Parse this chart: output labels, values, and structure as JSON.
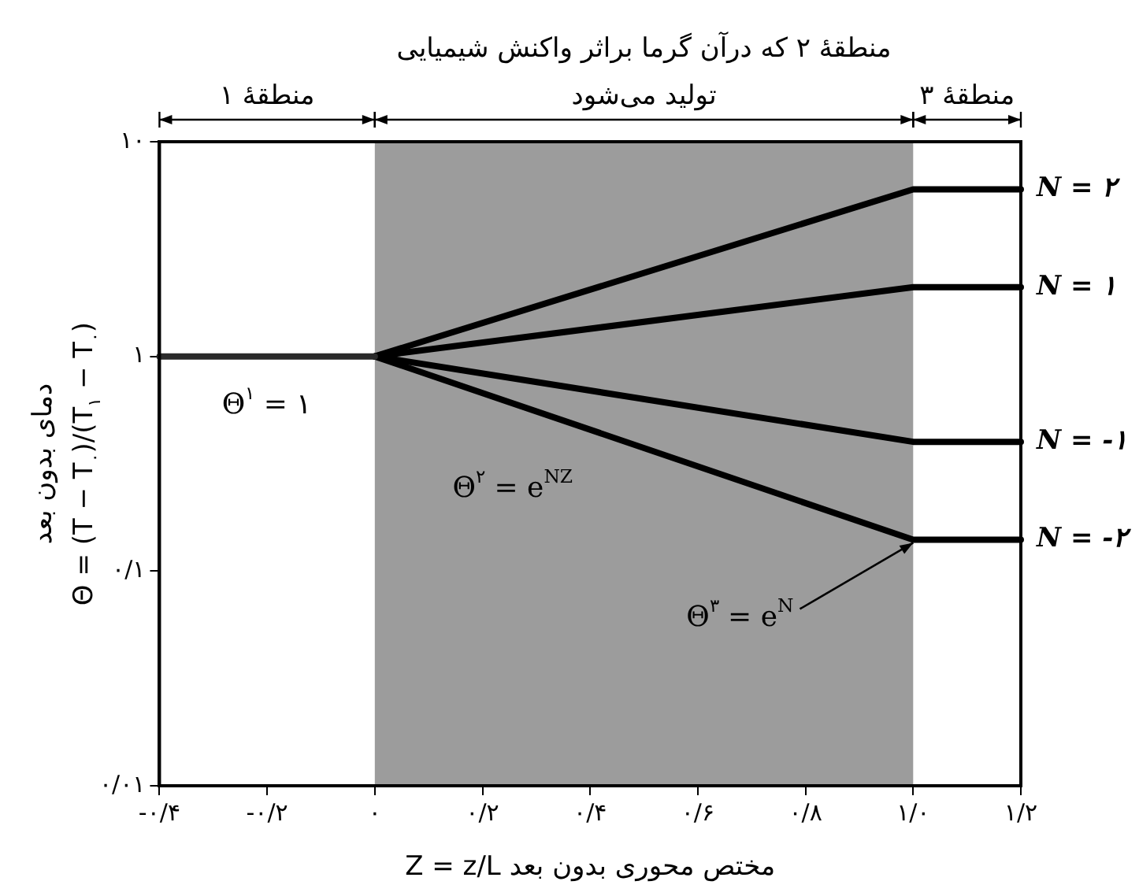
{
  "chart_data": {
    "type": "line",
    "xlabel": "مختص محوری بدون بعد Z = z/L",
    "ylabel": "دمای بدون بعد\nΘ = (T − T$_{۰}$)/(T$_{۱}$ − T$_{۰}$)",
    "log": "y",
    "grid": false,
    "legend": false,
    "marker": "none",
    "line_style": "solid",
    "categories": [
      "-۰/۴",
      "-۰/۲",
      "۰",
      "۰/۲",
      "۰/۴",
      "۰/۶",
      "۰/۸",
      "۱/۰",
      "۱/۲"
    ],
    "ylim": [
      0.01,
      10
    ],
    "yticks": [
      {
        "value": 0.01,
        "label": "۰/۰۱"
      },
      {
        "value": 0.1,
        "label": "۰/۱"
      },
      {
        "value": 1,
        "label": "۱"
      },
      {
        "value": 10,
        "label": "۱۰"
      }
    ],
    "bands": [
      {
        "axis": "x",
        "from": "۰",
        "to": "۱/۰",
        "label": "منطقهٔ ۲ که درآن گرما براثر واکنش شیمیایی تولید می‌شود",
        "color": "#9c9c9c"
      }
    ],
    "series": [
      {
        "color": "#2a2a2a",
        "values": [
          1,
          1,
          1,
          null,
          null,
          null,
          null,
          null,
          null
        ]
      },
      {
        "name": "N = ۲",
        "color": "#000000",
        "values": [
          null,
          null,
          1,
          null,
          null,
          null,
          null,
          6,
          6
        ]
      },
      {
        "name": "N = ۱",
        "color": "#000000",
        "values": [
          null,
          null,
          1,
          null,
          null,
          null,
          null,
          2.1,
          2.1
        ]
      },
      {
        "name": "N = -۱",
        "color": "#000000",
        "values": [
          null,
          null,
          1,
          null,
          null,
          null,
          null,
          0.4,
          0.4
        ]
      },
      {
        "name": "N = -۲",
        "color": "#000000",
        "values": [
          null,
          null,
          1,
          null,
          null,
          null,
          null,
          0.14,
          0.14
        ]
      }
    ],
    "annotations": [
      "منطقهٔ ۱",
      "منطقهٔ ۳",
      "Θ$^{۱}$ = ۱",
      "Θ$^{۲}$ = e$^{NZ}$",
      {
        "text": "Θ$^{۳}$ = e$^{N}$",
        "x": "۱/۰",
        "y": 0.14
      }
    ]
  }
}
